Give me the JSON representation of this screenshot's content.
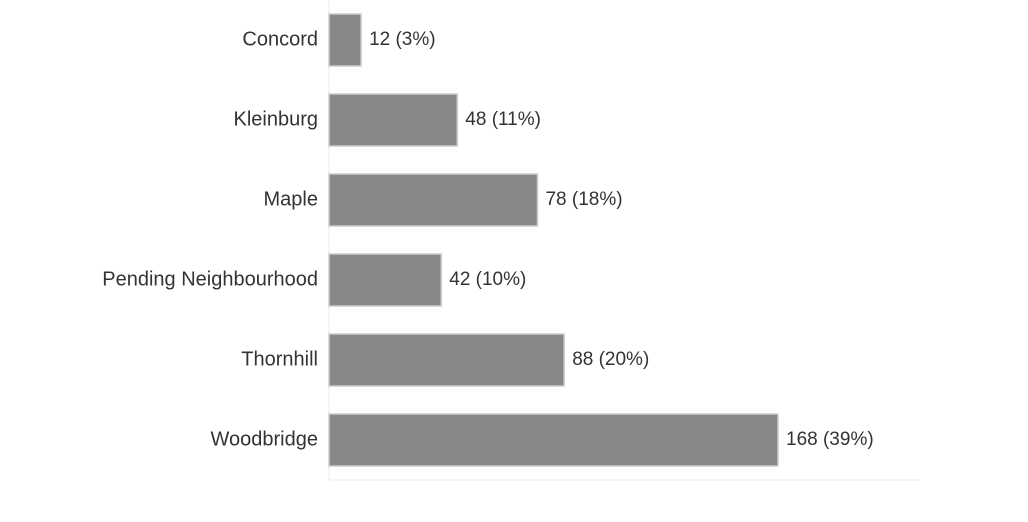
{
  "chart_data": {
    "type": "bar",
    "orientation": "horizontal",
    "categories": [
      "Concord",
      "Kleinburg",
      "Maple",
      "Pending Neighbourhood",
      "Thornhill",
      "Woodbridge"
    ],
    "values": [
      12,
      48,
      78,
      42,
      88,
      168
    ],
    "value_labels": [
      "12 (3%)",
      "48 (11%)",
      "78 (18%)",
      "42 (10%)",
      "88 (20%)",
      "168 (39%)"
    ],
    "color": "#888888"
  }
}
